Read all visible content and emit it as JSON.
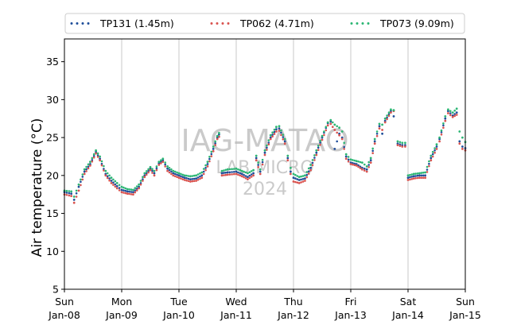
{
  "chart_data": {
    "type": "scatter",
    "ylabel": "Air temperature (°C)",
    "ylim": [
      5,
      38
    ],
    "yticks": [
      5,
      10,
      15,
      20,
      25,
      30,
      35
    ],
    "xlim": [
      0,
      7
    ],
    "x_unit": "days from Sun Jan-08",
    "xticks": [
      {
        "x": 0,
        "day": "Sun",
        "date": "Jan-08"
      },
      {
        "x": 1,
        "day": "Mon",
        "date": "Jan-09"
      },
      {
        "x": 2,
        "day": "Tue",
        "date": "Jan-10"
      },
      {
        "x": 3,
        "day": "Wed",
        "date": "Jan-11"
      },
      {
        "x": 4,
        "day": "Thu",
        "date": "Jan-12"
      },
      {
        "x": 5,
        "day": "Fri",
        "date": "Jan-13"
      },
      {
        "x": 6,
        "day": "Sat",
        "date": "Jan-14"
      },
      {
        "x": 7,
        "day": "Sun",
        "date": "Jan-15"
      }
    ],
    "grid": "vertical at day boundaries",
    "legend_position": "top, outside plot",
    "watermark": [
      "IAG-MATAO",
      "LAB MICRO",
      "2024"
    ],
    "series": [
      {
        "name": "TP131 (1.45m)",
        "color": "#1f4e9a",
        "points": [
          [
            0.0,
            17.8
          ],
          [
            0.12,
            17.6
          ],
          [
            0.17,
            16.8
          ],
          [
            0.25,
            18.5
          ],
          [
            0.35,
            20.5
          ],
          [
            0.45,
            21.5
          ],
          [
            0.55,
            23.1
          ],
          [
            0.62,
            22.2
          ],
          [
            0.72,
            20.2
          ],
          [
            0.82,
            19.3
          ],
          [
            0.92,
            18.6
          ],
          [
            1.0,
            18.1
          ],
          [
            1.1,
            17.9
          ],
          [
            1.2,
            17.8
          ],
          [
            1.3,
            18.5
          ],
          [
            1.4,
            20.0
          ],
          [
            1.5,
            20.9
          ],
          [
            1.57,
            20.3
          ],
          [
            1.65,
            21.6
          ],
          [
            1.72,
            22.0
          ],
          [
            1.8,
            20.9
          ],
          [
            1.9,
            20.3
          ],
          [
            2.0,
            20.0
          ],
          [
            2.1,
            19.7
          ],
          [
            2.2,
            19.5
          ],
          [
            2.3,
            19.6
          ],
          [
            2.4,
            20.0
          ],
          [
            2.5,
            21.5
          ],
          [
            2.6,
            23.5
          ],
          [
            2.67,
            25.0
          ],
          [
            2.7,
            25.4
          ],
          [
            2.75,
            20.3
          ],
          [
            2.85,
            20.4
          ],
          [
            3.0,
            20.5
          ],
          [
            3.1,
            20.2
          ],
          [
            3.2,
            19.8
          ],
          [
            3.3,
            20.3
          ],
          [
            3.35,
            22.3
          ],
          [
            3.42,
            20.5
          ],
          [
            3.5,
            23.0
          ],
          [
            3.6,
            25.0
          ],
          [
            3.7,
            26.1
          ],
          [
            3.75,
            26.2
          ],
          [
            3.85,
            24.5
          ],
          [
            3.9,
            22.3
          ],
          [
            3.95,
            20.5
          ],
          [
            4.0,
            19.7
          ],
          [
            4.1,
            19.4
          ],
          [
            4.2,
            19.6
          ],
          [
            4.3,
            21.0
          ],
          [
            4.4,
            23.0
          ],
          [
            4.5,
            25.0
          ],
          [
            4.6,
            26.9
          ],
          [
            4.65,
            27.1
          ],
          [
            4.72,
            23.5
          ],
          [
            4.8,
            25.5
          ],
          [
            4.85,
            25.0
          ],
          [
            4.92,
            22.5
          ],
          [
            5.0,
            21.7
          ],
          [
            5.1,
            21.5
          ],
          [
            5.2,
            21.0
          ],
          [
            5.28,
            20.8
          ],
          [
            5.35,
            22.0
          ],
          [
            5.42,
            24.5
          ],
          [
            5.5,
            26.5
          ],
          [
            5.55,
            25.5
          ],
          [
            5.6,
            27.2
          ],
          [
            5.7,
            28.5
          ],
          [
            5.75,
            27.8
          ],
          [
            5.82,
            24.2
          ],
          [
            5.9,
            24.0
          ],
          [
            5.95,
            24.0
          ],
          [
            6.0,
            19.7
          ],
          [
            6.1,
            19.9
          ],
          [
            6.2,
            20.0
          ],
          [
            6.3,
            20.0
          ],
          [
            6.4,
            22.3
          ],
          [
            6.5,
            23.8
          ],
          [
            6.55,
            24.8
          ],
          [
            6.65,
            27.5
          ],
          [
            6.7,
            28.5
          ],
          [
            6.78,
            27.9
          ],
          [
            6.85,
            28.3
          ],
          [
            6.9,
            24.5
          ],
          [
            6.95,
            23.8
          ],
          [
            7.0,
            23.6
          ]
        ]
      },
      {
        "name": "TP062 (4.71m)",
        "color": "#d9534f",
        "points": [
          [
            0.0,
            17.5
          ],
          [
            0.12,
            17.3
          ],
          [
            0.17,
            16.4
          ],
          [
            0.25,
            18.0
          ],
          [
            0.35,
            20.2
          ],
          [
            0.45,
            21.3
          ],
          [
            0.55,
            22.9
          ],
          [
            0.62,
            22.0
          ],
          [
            0.72,
            20.0
          ],
          [
            0.82,
            19.0
          ],
          [
            0.92,
            18.3
          ],
          [
            1.0,
            17.8
          ],
          [
            1.1,
            17.6
          ],
          [
            1.2,
            17.5
          ],
          [
            1.3,
            18.3
          ],
          [
            1.4,
            19.8
          ],
          [
            1.5,
            20.7
          ],
          [
            1.57,
            20.0
          ],
          [
            1.65,
            21.4
          ],
          [
            1.72,
            21.8
          ],
          [
            1.8,
            20.6
          ],
          [
            1.9,
            20.0
          ],
          [
            2.0,
            19.7
          ],
          [
            2.1,
            19.4
          ],
          [
            2.2,
            19.2
          ],
          [
            2.3,
            19.3
          ],
          [
            2.4,
            19.7
          ],
          [
            2.5,
            21.2
          ],
          [
            2.6,
            23.2
          ],
          [
            2.67,
            24.8
          ],
          [
            2.7,
            25.1
          ],
          [
            2.75,
            20.0
          ],
          [
            2.85,
            20.1
          ],
          [
            3.0,
            20.2
          ],
          [
            3.1,
            19.9
          ],
          [
            3.2,
            19.5
          ],
          [
            3.3,
            20.0
          ],
          [
            3.35,
            22.0
          ],
          [
            3.42,
            20.2
          ],
          [
            3.5,
            22.7
          ],
          [
            3.6,
            24.8
          ],
          [
            3.7,
            25.8
          ],
          [
            3.75,
            25.9
          ],
          [
            3.85,
            24.2
          ],
          [
            3.9,
            22.0
          ],
          [
            3.95,
            20.2
          ],
          [
            4.0,
            19.2
          ],
          [
            4.1,
            19.0
          ],
          [
            4.2,
            19.3
          ],
          [
            4.3,
            20.7
          ],
          [
            4.4,
            22.7
          ],
          [
            4.5,
            24.7
          ],
          [
            4.6,
            26.6
          ],
          [
            4.65,
            26.8
          ],
          [
            4.72,
            26.0
          ],
          [
            4.8,
            25.3
          ],
          [
            4.85,
            24.8
          ],
          [
            4.92,
            22.2
          ],
          [
            5.0,
            21.5
          ],
          [
            5.1,
            21.3
          ],
          [
            5.2,
            20.8
          ],
          [
            5.28,
            20.5
          ],
          [
            5.35,
            21.7
          ],
          [
            5.42,
            24.2
          ],
          [
            5.5,
            26.2
          ],
          [
            5.55,
            26.0
          ],
          [
            5.6,
            27.0
          ],
          [
            5.7,
            28.3
          ],
          [
            5.75,
            28.5
          ],
          [
            5.82,
            24.0
          ],
          [
            5.9,
            23.8
          ],
          [
            5.95,
            23.8
          ],
          [
            6.0,
            19.4
          ],
          [
            6.1,
            19.6
          ],
          [
            6.2,
            19.7
          ],
          [
            6.3,
            19.7
          ],
          [
            6.4,
            22.0
          ],
          [
            6.5,
            23.5
          ],
          [
            6.55,
            24.5
          ],
          [
            6.65,
            27.2
          ],
          [
            6.7,
            28.2
          ],
          [
            6.78,
            27.7
          ],
          [
            6.85,
            28.0
          ],
          [
            6.9,
            24.2
          ],
          [
            6.95,
            23.5
          ],
          [
            7.0,
            23.3
          ]
        ]
      },
      {
        "name": "TP073 (9.09m)",
        "color": "#2bb673",
        "points": [
          [
            0.0,
            18.0
          ],
          [
            0.12,
            17.9
          ],
          [
            0.17,
            17.2
          ],
          [
            0.25,
            18.8
          ],
          [
            0.35,
            20.8
          ],
          [
            0.45,
            21.8
          ],
          [
            0.55,
            23.3
          ],
          [
            0.62,
            22.5
          ],
          [
            0.72,
            20.6
          ],
          [
            0.82,
            19.7
          ],
          [
            0.92,
            19.0
          ],
          [
            1.0,
            18.5
          ],
          [
            1.1,
            18.2
          ],
          [
            1.2,
            18.1
          ],
          [
            1.3,
            18.8
          ],
          [
            1.4,
            20.3
          ],
          [
            1.5,
            21.1
          ],
          [
            1.57,
            20.6
          ],
          [
            1.65,
            21.8
          ],
          [
            1.72,
            22.2
          ],
          [
            1.8,
            21.2
          ],
          [
            1.9,
            20.6
          ],
          [
            2.0,
            20.3
          ],
          [
            2.1,
            20.0
          ],
          [
            2.2,
            19.9
          ],
          [
            2.3,
            20.0
          ],
          [
            2.4,
            20.4
          ],
          [
            2.5,
            21.8
          ],
          [
            2.6,
            23.8
          ],
          [
            2.67,
            25.2
          ],
          [
            2.7,
            25.6
          ],
          [
            2.75,
            20.6
          ],
          [
            2.85,
            20.8
          ],
          [
            3.0,
            20.9
          ],
          [
            3.1,
            20.6
          ],
          [
            3.2,
            20.3
          ],
          [
            3.3,
            20.7
          ],
          [
            3.35,
            22.6
          ],
          [
            3.42,
            20.8
          ],
          [
            3.5,
            23.3
          ],
          [
            3.6,
            25.3
          ],
          [
            3.7,
            26.4
          ],
          [
            3.75,
            26.5
          ],
          [
            3.85,
            24.8
          ],
          [
            3.9,
            22.6
          ],
          [
            3.95,
            21.0
          ],
          [
            4.0,
            20.2
          ],
          [
            4.1,
            19.8
          ],
          [
            4.2,
            20.0
          ],
          [
            4.3,
            21.4
          ],
          [
            4.4,
            23.3
          ],
          [
            4.5,
            25.2
          ],
          [
            4.6,
            27.0
          ],
          [
            4.65,
            27.3
          ],
          [
            4.72,
            26.7
          ],
          [
            4.8,
            26.3
          ],
          [
            4.85,
            25.8
          ],
          [
            4.92,
            22.8
          ],
          [
            5.0,
            22.1
          ],
          [
            5.1,
            21.9
          ],
          [
            5.2,
            21.7
          ],
          [
            5.28,
            21.2
          ],
          [
            5.35,
            22.3
          ],
          [
            5.42,
            24.8
          ],
          [
            5.5,
            26.8
          ],
          [
            5.55,
            26.7
          ],
          [
            5.6,
            27.5
          ],
          [
            5.7,
            28.7
          ],
          [
            5.75,
            28.6
          ],
          [
            5.82,
            24.5
          ],
          [
            5.9,
            24.3
          ],
          [
            5.95,
            24.3
          ],
          [
            6.0,
            20.0
          ],
          [
            6.1,
            20.2
          ],
          [
            6.2,
            20.3
          ],
          [
            6.3,
            20.4
          ],
          [
            6.4,
            22.6
          ],
          [
            6.5,
            24.1
          ],
          [
            6.55,
            25.0
          ],
          [
            6.65,
            27.8
          ],
          [
            6.7,
            28.7
          ],
          [
            6.78,
            28.3
          ],
          [
            6.85,
            28.8
          ],
          [
            6.9,
            25.8
          ],
          [
            6.95,
            25.0
          ],
          [
            7.0,
            24.4
          ]
        ]
      }
    ]
  }
}
